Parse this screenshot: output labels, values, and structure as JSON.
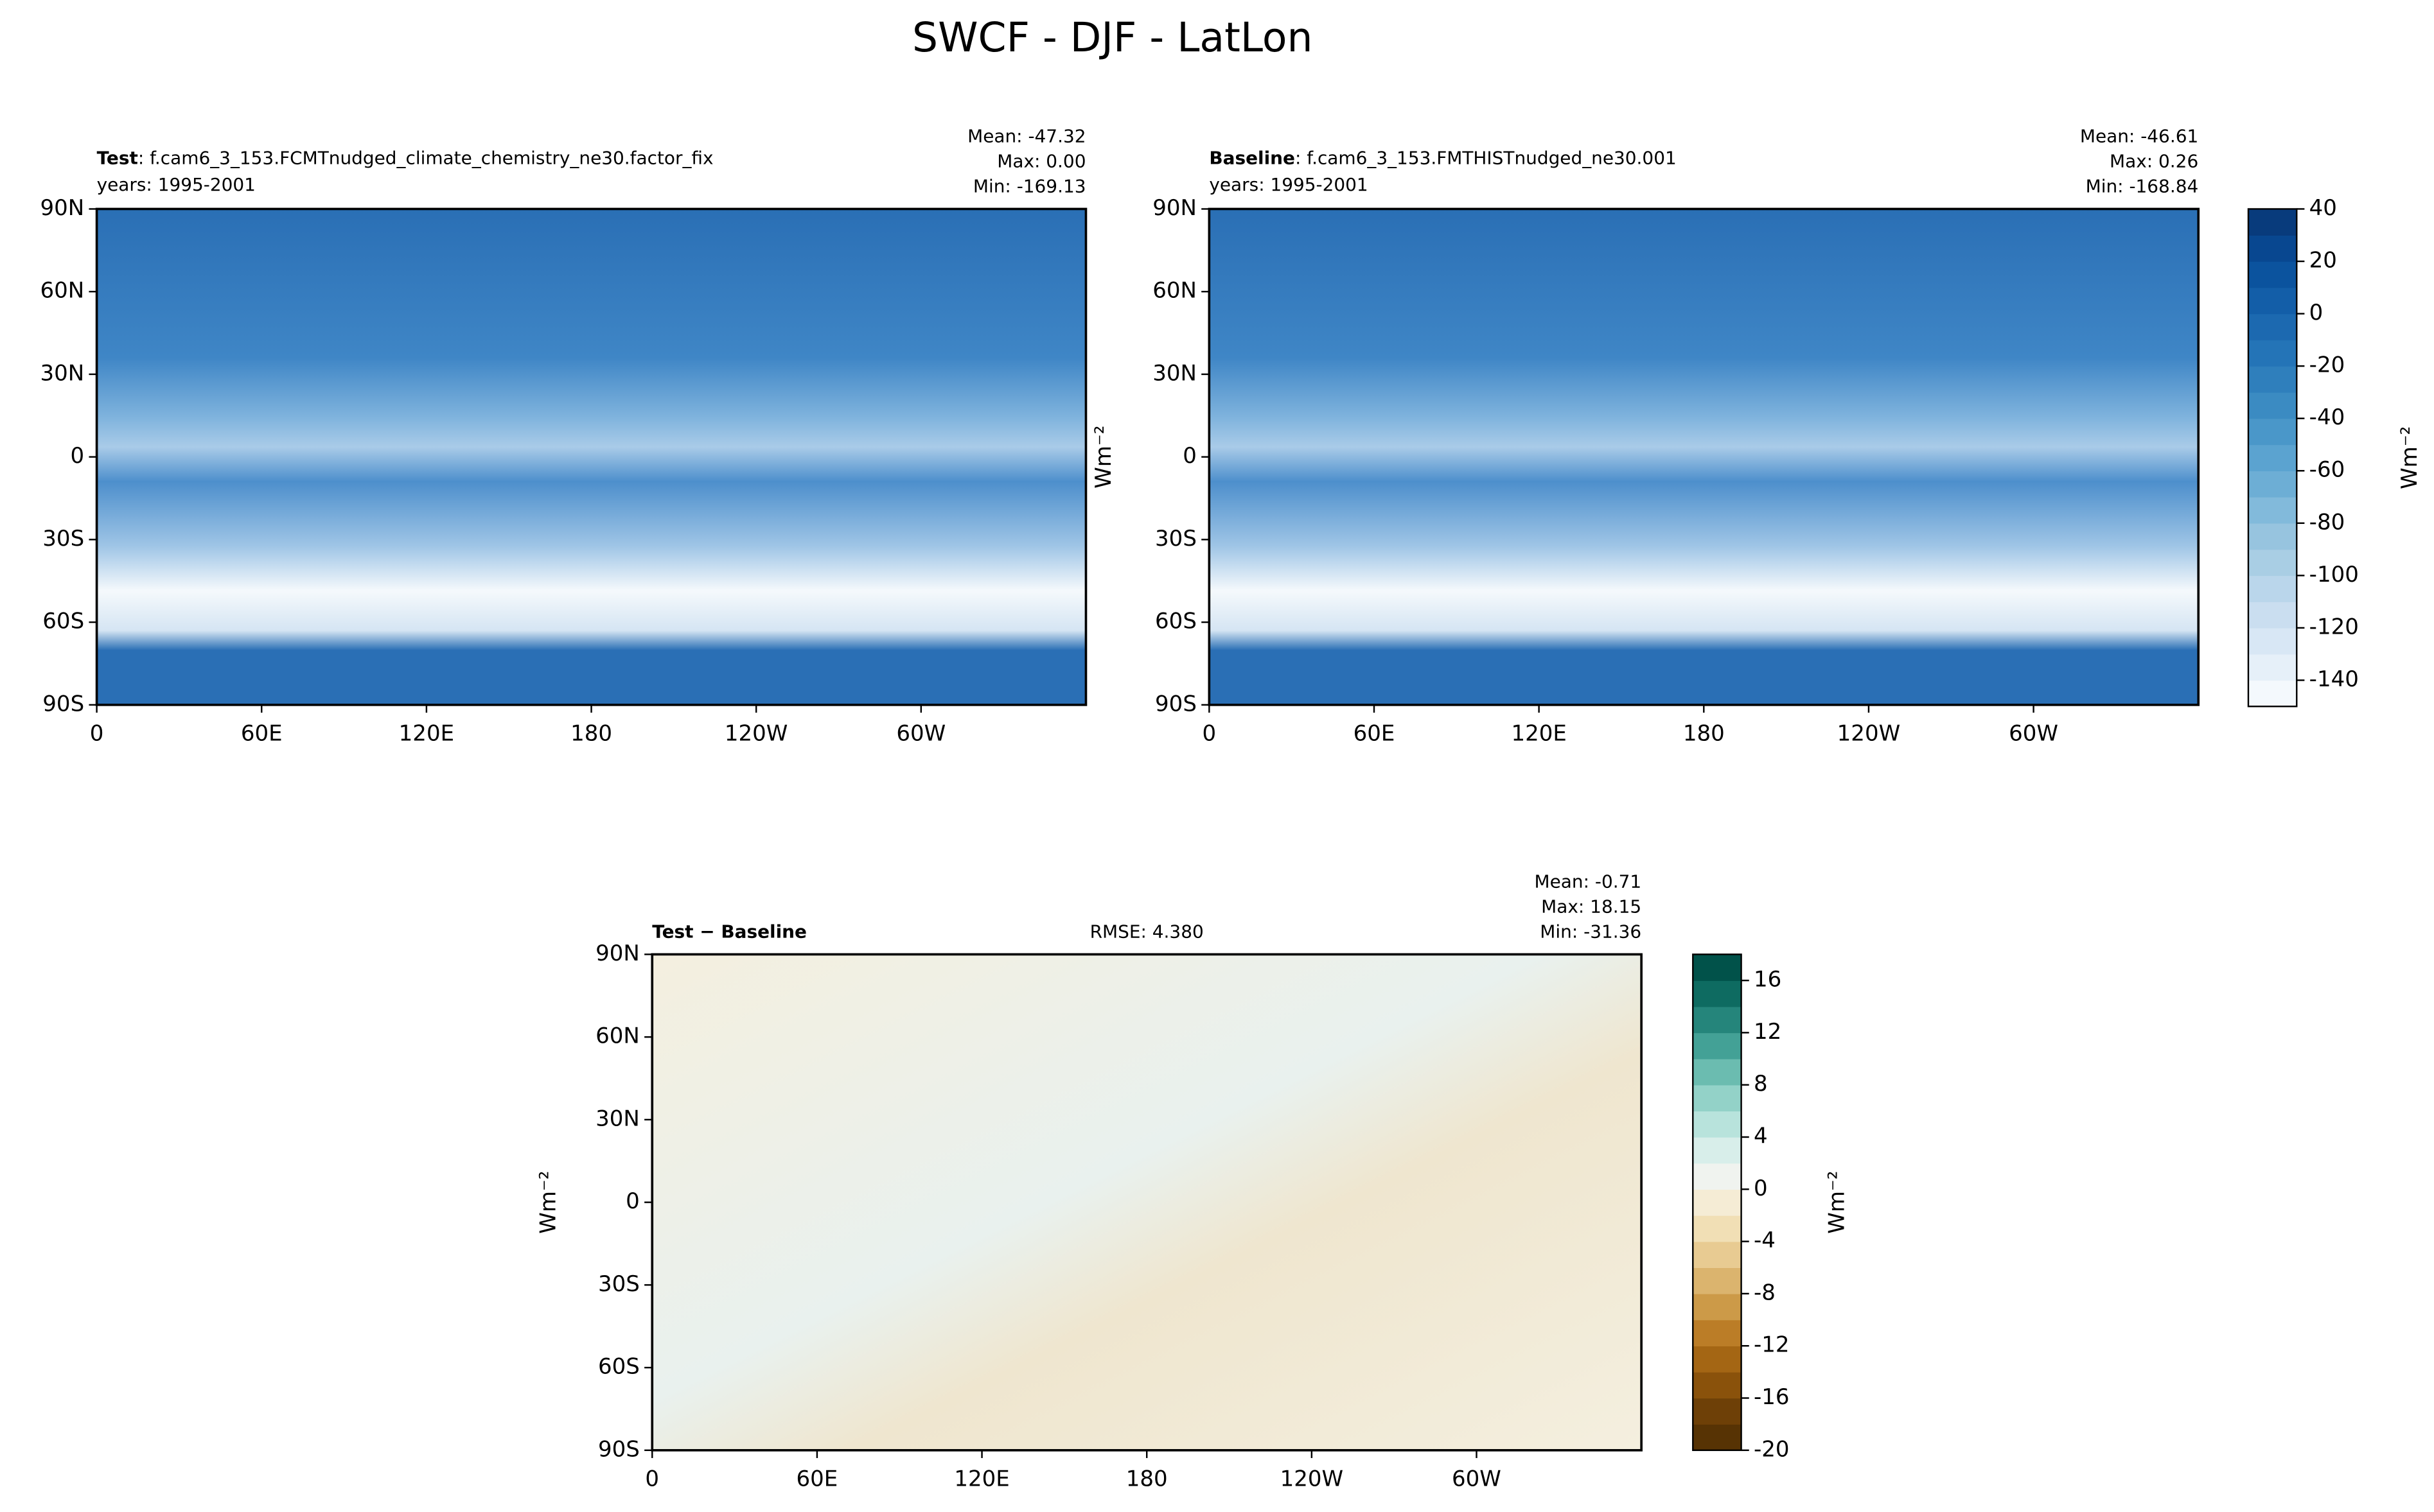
{
  "title": "SWCF - DJF - LatLon",
  "chart_data": [
    {
      "type": "map",
      "name": "Test",
      "case": ": f.cam6_3_153.FCMTnudged_climate_chemistry_ne30.factor_fix",
      "years": "years: 1995-2001",
      "stats": [
        "Mean: -47.32",
        "Max:  0.00",
        "Min: -169.13"
      ],
      "xlim": [
        0,
        360
      ],
      "xticks": [
        0,
        {
          "value": 60,
          "label": "60E"
        },
        {
          "value": 120,
          "label": "120E"
        },
        180,
        {
          "value": 240,
          "label": "120W"
        },
        {
          "value": 300,
          "label": "60W"
        }
      ],
      "ylim": [
        -90,
        90
      ],
      "yticks": [
        {
          "value": 90,
          "label": "90N"
        },
        {
          "value": 60,
          "label": "60N"
        },
        {
          "value": 30,
          "label": "30N"
        },
        0,
        {
          "value": -30,
          "label": "30S"
        },
        {
          "value": -60,
          "label": "60S"
        },
        {
          "value": -90,
          "label": "90S"
        }
      ]
    },
    {
      "type": "map",
      "name": "Baseline",
      "case": ": f.cam6_3_153.FMTHISTnudged_ne30.001",
      "years": "years: 1995-2001",
      "stats": [
        "Mean: -46.61",
        "Max:  0.26",
        "Min: -168.84"
      ],
      "ylabel": "Wm⁻²",
      "xlim": [
        0,
        360
      ],
      "xticks": [
        0,
        {
          "value": 60,
          "label": "60E"
        },
        {
          "value": 120,
          "label": "120E"
        },
        180,
        {
          "value": 240,
          "label": "120W"
        },
        {
          "value": 300,
          "label": "60W"
        }
      ],
      "ylim": [
        -90,
        90
      ],
      "yticks": [
        {
          "value": 90,
          "label": "90N"
        },
        {
          "value": 60,
          "label": "60N"
        },
        {
          "value": 30,
          "label": "30N"
        },
        0,
        {
          "value": -30,
          "label": "30S"
        },
        {
          "value": -60,
          "label": "60S"
        },
        {
          "value": -90,
          "label": "90S"
        }
      ],
      "colorbar": {
        "label": "Wm⁻²",
        "lim": [
          -150,
          40
        ],
        "ticks": [
          40,
          20,
          0,
          -20,
          -40,
          -60,
          -80,
          -100,
          -120,
          -140
        ],
        "colors": [
          "#f4f9fd",
          "#e6f0f9",
          "#d8e7f5",
          "#cadef0",
          "#bad6eb",
          "#a9cee4",
          "#97c4df",
          "#82badb",
          "#6daed5",
          "#5ba3d0",
          "#4a97c9",
          "#3b8bc2",
          "#2f7fbc",
          "#2474b7",
          "#1c69b0",
          "#135ea8",
          "#0b539e",
          "#084790",
          "#083b7c"
        ]
      }
    },
    {
      "type": "map",
      "name": "Test − Baseline",
      "rmse": "RMSE: 4.380",
      "stats": [
        "Mean: -0.71",
        "Max: 18.15",
        "Min: -31.36"
      ],
      "ylabel": "Wm⁻²",
      "xlim": [
        0,
        360
      ],
      "xticks": [
        0,
        {
          "value": 60,
          "label": "60E"
        },
        {
          "value": 120,
          "label": "120E"
        },
        180,
        {
          "value": 240,
          "label": "120W"
        },
        {
          "value": 300,
          "label": "60W"
        }
      ],
      "ylim": [
        -90,
        90
      ],
      "yticks": [
        {
          "value": 90,
          "label": "90N"
        },
        {
          "value": 60,
          "label": "60N"
        },
        {
          "value": 30,
          "label": "30N"
        },
        0,
        {
          "value": -30,
          "label": "30S"
        },
        {
          "value": -60,
          "label": "60S"
        },
        {
          "value": -90,
          "label": "90S"
        }
      ],
      "colorbar": {
        "label": "Wm⁻²",
        "lim": [
          -20,
          18
        ],
        "ticks": [
          16,
          12,
          8,
          4,
          0,
          -4,
          -8,
          -12,
          -16,
          -20
        ],
        "colors": [
          "#573304",
          "#6e4007",
          "#8a520b",
          "#a46614",
          "#bb7d27",
          "#cc9a48",
          "#dbb46e",
          "#e8cb92",
          "#f1dfb5",
          "#f5ecd5",
          "#f0f3ef",
          "#d8eeea",
          "#b8e3dc",
          "#93d2c8",
          "#6bbcb0",
          "#43a196",
          "#25857b",
          "#0e6b61",
          "#01524a"
        ]
      }
    }
  ]
}
